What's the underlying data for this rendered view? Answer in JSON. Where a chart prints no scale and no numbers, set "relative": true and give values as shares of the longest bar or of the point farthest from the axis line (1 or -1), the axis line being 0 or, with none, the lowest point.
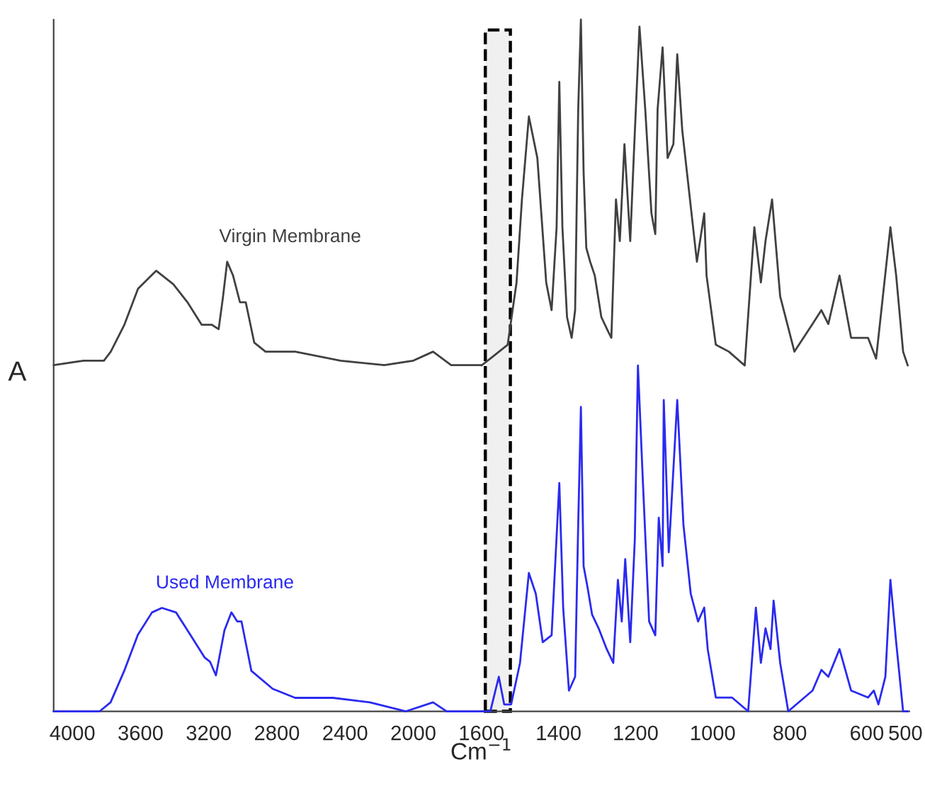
{
  "chart_data": [
    {
      "type": "line",
      "relative": true,
      "xlabel": "Cm$^{−1}$",
      "ylabel": "A",
      "xlim": [
        4110,
        1600
      ],
      "xticks": [
        4000,
        3600,
        3200,
        2800,
        2400,
        2000,
        1600
      ],
      "tick_labels": "x",
      "grid": false,
      "marker": "none",
      "line_style": "solid",
      "series": [
        {
          "name": "Virgin Membrane",
          "color": "#404040",
          "x": [
            4110,
            3935,
            3870,
            3815,
            3775,
            3695,
            3615,
            3508,
            3408,
            3325,
            3242,
            3183,
            3142,
            3117,
            3092,
            3058,
            3017,
            2983,
            2933,
            2867,
            2693,
            2427,
            2170,
            2000,
            1884,
            1778,
            1733,
            1644,
            1600
          ],
          "values": [
            0.77,
            0.78,
            0.78,
            0.78,
            0.8,
            0.86,
            0.94,
            0.98,
            0.95,
            0.91,
            0.86,
            0.86,
            0.85,
            0.92,
            1.0,
            0.97,
            0.91,
            0.91,
            0.82,
            0.8,
            0.8,
            0.78,
            0.77,
            0.78,
            0.8,
            0.77,
            0.77,
            0.77,
            0.77
          ]
        },
        {
          "name": "Used Membrane",
          "color": "#2a2af0",
          "x": [
            4110,
            3976,
            3896,
            3840,
            3776,
            3696,
            3616,
            3533,
            3475,
            3392,
            3308,
            3225,
            3192,
            3158,
            3108,
            3067,
            3033,
            3008,
            2950,
            2825,
            2693,
            2471,
            2255,
            2043,
            1884,
            1804,
            1644,
            1600
          ],
          "values": [
            0,
            0,
            0,
            0,
            0.02,
            0.09,
            0.17,
            0.22,
            0.23,
            0.22,
            0.17,
            0.12,
            0.11,
            0.08,
            0.18,
            0.22,
            0.2,
            0.2,
            0.09,
            0.05,
            0.03,
            0.03,
            0.02,
            0,
            0.02,
            0,
            0,
            0
          ]
        }
      ]
    },
    {
      "type": "line",
      "relative": true,
      "xlim": [
        1600,
        490
      ],
      "xticks": [
        1400,
        1200,
        1000,
        800,
        600,
        500
      ],
      "tick_labels": "x",
      "grid": false,
      "marker": "none",
      "line_style": "solid",
      "bands": [
        {
          "axis": "x",
          "from": 1590,
          "to": 1525,
          "color": "#000000"
        }
      ],
      "series": [
        {
          "color": "#404040",
          "x": [
            1600,
            1577,
            1532,
            1509,
            1495,
            1477,
            1455,
            1432,
            1418,
            1405,
            1398,
            1390,
            1378,
            1366,
            1357,
            1349,
            1342,
            1335,
            1328,
            1318,
            1306,
            1289,
            1272,
            1263,
            1251,
            1241,
            1229,
            1214,
            1205,
            1190,
            1175,
            1159,
            1149,
            1143,
            1130,
            1117,
            1102,
            1092,
            1079,
            1063,
            1041,
            1022,
            1016,
            992,
            958,
            917,
            892,
            875,
            863,
            846,
            825,
            788,
            741,
            718,
            700,
            671,
            641,
            597,
            576,
            539,
            524,
            506,
            494
          ],
          "values": [
            0.5,
            0.51,
            0.53,
            0.62,
            0.74,
            0.86,
            0.8,
            0.62,
            0.58,
            0.7,
            0.91,
            0.7,
            0.57,
            0.54,
            0.58,
            0.87,
            1.0,
            0.78,
            0.67,
            0.65,
            0.63,
            0.57,
            0.55,
            0.54,
            0.74,
            0.68,
            0.82,
            0.68,
            0.8,
            0.99,
            0.87,
            0.72,
            0.69,
            0.87,
            0.96,
            0.8,
            0.82,
            0.95,
            0.84,
            0.76,
            0.65,
            0.72,
            0.63,
            0.53,
            0.52,
            0.5,
            0.7,
            0.62,
            0.68,
            0.74,
            0.6,
            0.52,
            0.56,
            0.58,
            0.56,
            0.63,
            0.54,
            0.54,
            0.51,
            0.7,
            0.63,
            0.52,
            0.5
          ]
        },
        {
          "color": "#2a2af0",
          "x": [
            1600,
            1577,
            1555,
            1541,
            1523,
            1500,
            1477,
            1459,
            1441,
            1418,
            1398,
            1388,
            1373,
            1357,
            1349,
            1342,
            1335,
            1325,
            1313,
            1296,
            1275,
            1258,
            1246,
            1236,
            1227,
            1214,
            1202,
            1194,
            1181,
            1165,
            1149,
            1140,
            1130,
            1127,
            1114,
            1092,
            1076,
            1057,
            1038,
            1022,
            1013,
            992,
            950,
            908,
            888,
            875,
            863,
            850,
            842,
            825,
            804,
            741,
            718,
            700,
            671,
            641,
            597,
            582,
            570,
            552,
            539,
            524,
            506,
            494
          ],
          "values": [
            0,
            0,
            0.05,
            0.01,
            0.01,
            0.07,
            0.2,
            0.17,
            0.1,
            0.11,
            0.33,
            0.15,
            0.03,
            0.05,
            0.27,
            0.44,
            0.21,
            0.18,
            0.14,
            0.12,
            0.09,
            0.07,
            0.19,
            0.13,
            0.22,
            0.1,
            0.25,
            0.5,
            0.33,
            0.13,
            0.11,
            0.28,
            0.21,
            0.45,
            0.23,
            0.45,
            0.27,
            0.17,
            0.13,
            0.15,
            0.09,
            0.02,
            0.02,
            0,
            0.15,
            0.07,
            0.12,
            0.09,
            0.16,
            0.07,
            0,
            0.03,
            0.06,
            0.05,
            0.09,
            0.03,
            0.02,
            0.03,
            0.01,
            0.05,
            0.19,
            0.1,
            0,
            0
          ]
        }
      ]
    }
  ]
}
